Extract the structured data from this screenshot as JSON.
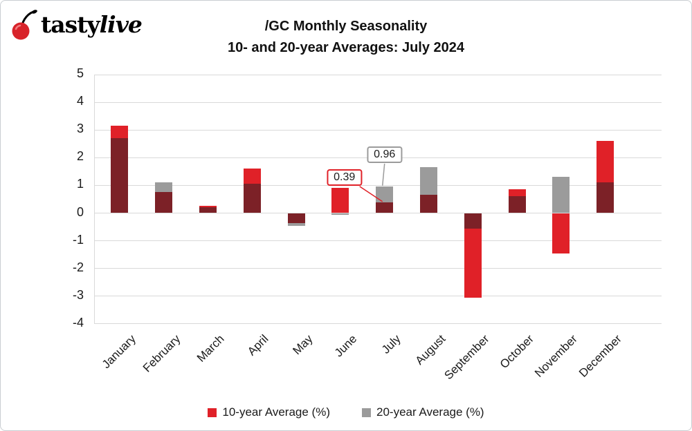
{
  "logo": {
    "brand_bold": "tasty",
    "brand_italic": "live"
  },
  "title": {
    "line1": "/GC Monthly Seasonality",
    "line2": "10- and 20-year Averages: July 2024"
  },
  "legend": [
    {
      "label": "10-year Average (%)",
      "color": "#e02128"
    },
    {
      "label": "20-year Average (%)",
      "color": "#9b9b9b"
    }
  ],
  "callouts": [
    {
      "text": "0.39",
      "month": "July",
      "series": "10-year Average (%)",
      "value": 0.39,
      "border": "#e02128"
    },
    {
      "text": "0.96",
      "month": "July",
      "series": "20-year Average (%)",
      "value": 0.96,
      "border": "#9b9b9b"
    }
  ],
  "chart_data": {
    "type": "bar",
    "title": "/GC Monthly Seasonality 10- and 20-year Averages: July 2024",
    "categories": [
      "January",
      "February",
      "March",
      "April",
      "May",
      "June",
      "July",
      "August",
      "September",
      "October",
      "November",
      "December"
    ],
    "series": [
      {
        "name": "10-year Average (%)",
        "color": "#e02128",
        "values": [
          3.15,
          0.75,
          0.27,
          1.6,
          -0.35,
          0.9,
          0.39,
          0.65,
          -3.05,
          0.85,
          -1.45,
          2.6
        ]
      },
      {
        "name": "20-year Average (%)",
        "color": "#9b9b9b",
        "values": [
          2.7,
          1.1,
          0.2,
          1.05,
          -0.45,
          -0.05,
          0.96,
          1.65,
          -0.55,
          0.6,
          1.3,
          1.1
        ]
      }
    ],
    "overlap_color": "#7c2127",
    "grid_color": "#d9d9d9",
    "xlabel": "",
    "ylabel": "",
    "ylim": [
      -4,
      5
    ],
    "yticks": [
      5,
      4,
      3,
      2,
      1,
      0,
      -1,
      -2,
      -3,
      -4
    ],
    "grid": true,
    "legend_position": "bottom"
  }
}
